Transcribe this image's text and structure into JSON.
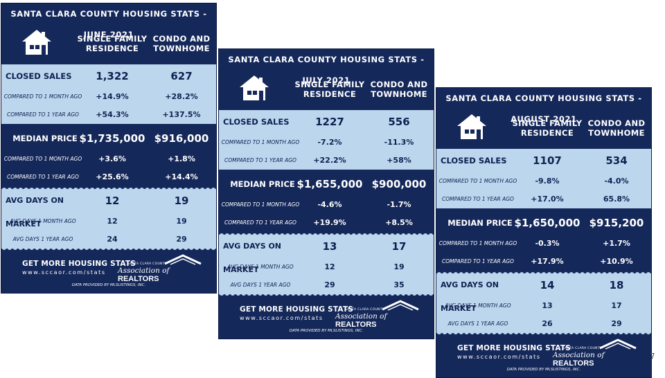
{
  "cards": [
    {
      "title": "SANTA CLARA COUNTY HOUSING STATS - JUNE 2021",
      "col_sfr": [
        "SINGLE FAMILY",
        "RESIDENCE"
      ],
      "col_condo": [
        "CONDO AND",
        "TOWNHOME"
      ],
      "closed_sales": {
        "label": "CLOSED SALES",
        "sfr": "1,322",
        "condo": "627"
      },
      "closed_1m": {
        "label": "COMPARED TO 1 MONTH AGO",
        "sfr": "+14.9%",
        "condo": "+28.2%"
      },
      "closed_1y": {
        "label": "COMPARED TO 1 YEAR AGO",
        "sfr": "+54.3%",
        "condo": "+137.5%"
      },
      "median": {
        "label": "MEDIAN PRICE",
        "sfr": "$1,735,000",
        "condo": "$916,000"
      },
      "median_1m": {
        "label": "COMPARED TO 1 MONTH AGO",
        "sfr": "+3.6%",
        "condo": "+1.8%"
      },
      "median_1y": {
        "label": "COMPARED TO 1 YEAR AGO",
        "sfr": "+25.6%",
        "condo": "+14.4%"
      },
      "dom": {
        "label": "AVG DAYS ON MARKET",
        "sfr": "12",
        "condo": "19"
      },
      "dom_1m": {
        "label": "AVG DAYS 1 MONTH AGO",
        "sfr": "12",
        "condo": "19"
      },
      "dom_1y": {
        "label": "AVG DAYS 1 YEAR AGO",
        "sfr": "24",
        "condo": "29"
      },
      "footer": {
        "get": "GET MORE HOUSING STATS",
        "url": "www.sccaor.com/stats",
        "logo_small": "SANTA CLARA COUNTY",
        "logo_big": "Association of",
        "logo_realtors": "REALTORS",
        "data": "DATA PROVIDED BY MLSLISTINGS, INC."
      }
    },
    {
      "title": "SANTA CLARA COUNTY HOUSING STATS - JULY 2021",
      "col_sfr": [
        "SINGLE FAMILY",
        "RESIDENCE"
      ],
      "col_condo": [
        "CONDO AND",
        "TOWNHOME"
      ],
      "closed_sales": {
        "label": "CLOSED SALES",
        "sfr": "1227",
        "condo": "556"
      },
      "closed_1m": {
        "label": "COMPARED TO 1 MONTH AGO",
        "sfr": "-7.2%",
        "condo": "-11.3%"
      },
      "closed_1y": {
        "label": "COMPARED TO 1 YEAR AGO",
        "sfr": "+22.2%",
        "condo": "+58%"
      },
      "median": {
        "label": "MEDIAN PRICE",
        "sfr": "$1,655,000",
        "condo": "$900,000"
      },
      "median_1m": {
        "label": "COMPARED TO 1 MONTH AGO",
        "sfr": "-4.6%",
        "condo": "-1.7%"
      },
      "median_1y": {
        "label": "COMPARED TO 1 YEAR AGO",
        "sfr": "+19.9%",
        "condo": "+8.5%"
      },
      "dom": {
        "label": "AVG DAYS ON MARKET",
        "sfr": "13",
        "condo": "17"
      },
      "dom_1m": {
        "label": "AVG DAYS 1 MONTH AGO",
        "sfr": "12",
        "condo": "19"
      },
      "dom_1y": {
        "label": "AVG DAYS 1 YEAR AGO",
        "sfr": "29",
        "condo": "35"
      },
      "footer": {
        "get": "GET MORE HOUSING STATS",
        "url": "www.sccaor.com/stats",
        "logo_small": "SANTA CLARA COUNTY",
        "logo_big": "Association of",
        "logo_realtors": "REALTORS",
        "data": "DATA PROVIDED BY MLSLISTINGS, INC."
      }
    },
    {
      "title": "SANTA CLARA COUNTY HOUSING STATS - AUGUST 2021",
      "col_sfr": [
        "SINGLE FAMILY",
        "RESIDENCE"
      ],
      "col_condo": [
        "CONDO AND",
        "TOWNHOME"
      ],
      "closed_sales": {
        "label": "CLOSED SALES",
        "sfr": "1107",
        "condo": "534"
      },
      "closed_1m": {
        "label": "COMPARED TO 1 MONTH AGO",
        "sfr": "-9.8%",
        "condo": "-4.0%"
      },
      "closed_1y": {
        "label": "COMPARED TO 1 YEAR AGO",
        "sfr": "+17.0%",
        "condo": "65.8%"
      },
      "median": {
        "label": "MEDIAN PRICE",
        "sfr": "$1,650,000",
        "condo": "$915,200"
      },
      "median_1m": {
        "label": "COMPARED TO 1 MONTH AGO",
        "sfr": "-0.3%",
        "condo": "+1.7%"
      },
      "median_1y": {
        "label": "COMPARED TO 1 YEAR AGO",
        "sfr": "+17.9%",
        "condo": "+10.9%"
      },
      "dom": {
        "label": "AVG DAYS ON MARKET",
        "sfr": "14",
        "condo": "18"
      },
      "dom_1m": {
        "label": "AVG DAYS 1 MONTH AGO",
        "sfr": "13",
        "condo": "17"
      },
      "dom_1y": {
        "label": "AVG DAYS 1 YEAR AGO",
        "sfr": "26",
        "condo": "29"
      },
      "footer": {
        "get": "GET MORE HOUSING STATS",
        "url": "www.sccaor.com/stats",
        "logo_small": "SANTA CLARA COUNTY",
        "logo_big": "Association of",
        "logo_realtors": "REALTORS",
        "data": "DATA PROVIDED BY MLSLISTINGS, INC."
      }
    }
  ],
  "page_number": "7",
  "colors": {
    "navy": "#15285a",
    "light_blue": "#bcd6ee",
    "white": "#ffffff"
  }
}
